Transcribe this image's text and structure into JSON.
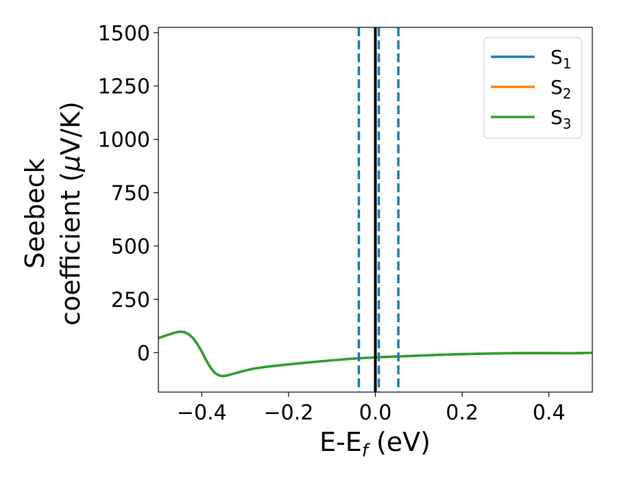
{
  "chart_data": {
    "type": "line",
    "xlabel": "E-E",
    "xlabel_sub": "f",
    "xlabel_unit": " (eV)",
    "ylabel_line1": "Seebeck",
    "ylabel_line2": "coefficient  (",
    "ylabel_mu": "μ",
    "ylabel_unit": "V/K)",
    "xlim": [
      -0.5,
      0.5
    ],
    "ylim": [
      -185,
      1525
    ],
    "xticks": [
      -0.4,
      -0.2,
      0.0,
      0.2,
      0.4
    ],
    "xtick_labels": [
      "−0.4",
      "−0.2",
      "0.0",
      "0.2",
      "0.4"
    ],
    "yticks": [
      0,
      250,
      500,
      750,
      1000,
      1250,
      1500
    ],
    "ytick_labels": [
      "0",
      "250",
      "500",
      "750",
      "1000",
      "1250",
      "1500"
    ],
    "legend_position": "top-right",
    "grid": false,
    "x": [
      -0.5,
      -0.48,
      -0.46,
      -0.45,
      -0.44,
      -0.43,
      -0.42,
      -0.41,
      -0.4,
      -0.39,
      -0.38,
      -0.37,
      -0.36,
      -0.35,
      -0.34,
      -0.32,
      -0.3,
      -0.28,
      -0.25,
      -0.2,
      -0.15,
      -0.1,
      -0.05,
      0.0,
      0.05,
      0.1,
      0.15,
      0.2,
      0.25,
      0.3,
      0.35,
      0.4,
      0.45,
      0.5
    ],
    "series": [
      {
        "name": "S",
        "sub": "1",
        "color": "#1f77b4",
        "values": [
          68,
          82,
          95,
          98,
          96,
          86,
          68,
          40,
          5,
          -35,
          -70,
          -95,
          -107,
          -110,
          -106,
          -95,
          -84,
          -75,
          -66,
          -55,
          -45,
          -36,
          -28,
          -22,
          -18,
          -14,
          -10,
          -7,
          -5,
          -3,
          -2,
          -2,
          -3,
          -1
        ]
      },
      {
        "name": "S",
        "sub": "2",
        "color": "#ff7f0e",
        "values": [
          68,
          82,
          95,
          98,
          96,
          86,
          68,
          40,
          5,
          -35,
          -70,
          -95,
          -107,
          -110,
          -106,
          -95,
          -84,
          -75,
          -66,
          -55,
          -45,
          -36,
          -28,
          -22,
          -18,
          -14,
          -10,
          -7,
          -5,
          -3,
          -2,
          -2,
          -3,
          -1
        ]
      },
      {
        "name": "S",
        "sub": "3",
        "color": "#2ca02c",
        "values": [
          68,
          82,
          95,
          98,
          96,
          86,
          68,
          40,
          5,
          -35,
          -70,
          -95,
          -107,
          -110,
          -106,
          -95,
          -84,
          -75,
          -66,
          -55,
          -45,
          -36,
          -28,
          -22,
          -18,
          -14,
          -10,
          -7,
          -5,
          -3,
          -2,
          -2,
          -3,
          -1
        ]
      }
    ],
    "vlines": [
      {
        "x": 0.0,
        "style": "solid",
        "color": "#000000"
      },
      {
        "x": -0.038,
        "style": "dashed",
        "color": "#1f77b4"
      },
      {
        "x": 0.008,
        "style": "dashed",
        "color": "#1f77b4"
      },
      {
        "x": 0.053,
        "style": "dashed",
        "color": "#1f77b4"
      }
    ]
  }
}
